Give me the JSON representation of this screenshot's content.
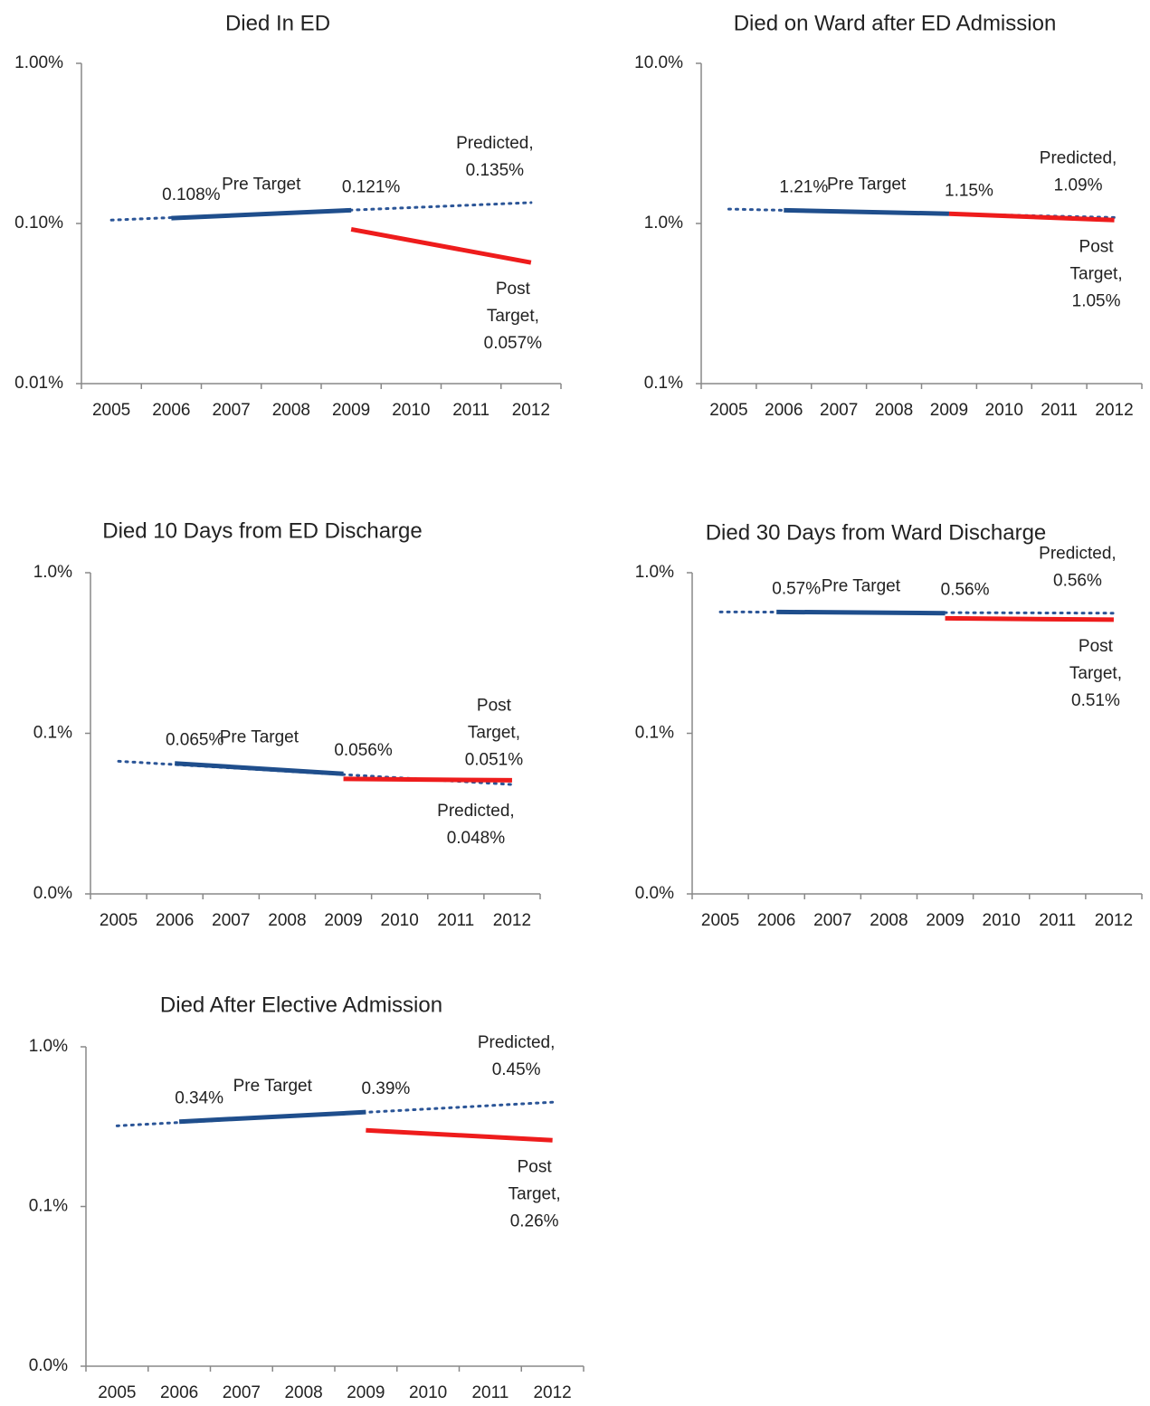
{
  "chart_data": [
    {
      "type": "line",
      "title": "Died In ED",
      "log_scale": true,
      "categories": [
        "2005",
        "2006",
        "2007",
        "2008",
        "2009",
        "2010",
        "2011",
        "2012"
      ],
      "ylim": [
        0.01,
        1
      ],
      "yticks": [
        {
          "value": 1,
          "label": "1.00%"
        },
        {
          "value": 0.1,
          "label": "0.10%"
        },
        {
          "value": 0.01,
          "label": "0.01%"
        }
      ],
      "series": [
        {
          "label": [
            "Predicted,"
          ],
          "color": "#2b5597",
          "style": "dotted",
          "x": [
            "2005",
            "2012"
          ],
          "values": [
            0.105,
            0.135
          ],
          "value_labels": [
            null,
            "0.135%"
          ]
        },
        {
          "name": "Pre Target",
          "color": "#1f4e8c",
          "style": "solid",
          "x": [
            "2006",
            "2009"
          ],
          "values": [
            0.108,
            0.121
          ],
          "value_labels": [
            "0.108%",
            "0.121%"
          ]
        },
        {
          "label": [
            "Post",
            "Target,"
          ],
          "color": "#ee1c1c",
          "style": "solid",
          "x": [
            "2009",
            "2012"
          ],
          "values": [
            0.092,
            0.057
          ],
          "value_labels": [
            null,
            "0.057%"
          ]
        }
      ]
    },
    {
      "type": "line",
      "title": "Died on Ward after ED Admission",
      "log_scale": true,
      "categories": [
        "2005",
        "2006",
        "2007",
        "2008",
        "2009",
        "2010",
        "2011",
        "2012"
      ],
      "ylim": [
        0.1,
        10
      ],
      "yticks": [
        {
          "value": 10,
          "label": "10.0%"
        },
        {
          "value": 1,
          "label": "1.0%"
        },
        {
          "value": 0.1,
          "label": "0.1%"
        }
      ],
      "series": [
        {
          "label": [
            "Predicted,"
          ],
          "color": "#2b5597",
          "style": "dotted",
          "x": [
            "2005",
            "2012"
          ],
          "values": [
            1.23,
            1.09
          ],
          "value_labels": [
            null,
            "1.09%"
          ]
        },
        {
          "name": "Pre Target",
          "color": "#1f4e8c",
          "style": "solid",
          "x": [
            "2006",
            "2009"
          ],
          "values": [
            1.21,
            1.15
          ],
          "value_labels": [
            "1.21%",
            "1.15%"
          ]
        },
        {
          "label": [
            "Post",
            "Target,"
          ],
          "color": "#ee1c1c",
          "style": "solid",
          "x": [
            "2009",
            "2012"
          ],
          "values": [
            1.15,
            1.05
          ],
          "value_labels": [
            null,
            "1.05%"
          ]
        }
      ]
    },
    {
      "type": "line",
      "title": "Died 10 Days from ED Discharge",
      "log_scale": true,
      "categories": [
        "2005",
        "2006",
        "2007",
        "2008",
        "2009",
        "2010",
        "2011",
        "2012"
      ],
      "ylim": [
        0.01,
        1
      ],
      "yticks": [
        {
          "value": 1,
          "label": "1.0%"
        },
        {
          "value": 0.1,
          "label": "0.1%"
        },
        {
          "value": 0.01,
          "label": "0.0%"
        }
      ],
      "series": [
        {
          "label": [
            "Predicted,"
          ],
          "color": "#2b5597",
          "style": "dotted",
          "x": [
            "2005",
            "2012"
          ],
          "values": [
            0.067,
            0.048
          ],
          "value_labels": [
            null,
            "0.048%"
          ]
        },
        {
          "name": "Pre Target",
          "color": "#1f4e8c",
          "style": "solid",
          "x": [
            "2006",
            "2009"
          ],
          "values": [
            0.065,
            0.056
          ],
          "value_labels": [
            "0.065%",
            "0.056%"
          ]
        },
        {
          "label": [
            "Post",
            "Target,"
          ],
          "color": "#ee1c1c",
          "style": "solid",
          "x": [
            "2009",
            "2012"
          ],
          "values": [
            0.052,
            0.051
          ],
          "value_labels": [
            null,
            "0.051%"
          ]
        }
      ]
    },
    {
      "type": "line",
      "title": "Died 30 Days from Ward Discharge",
      "log_scale": true,
      "categories": [
        "2005",
        "2006",
        "2007",
        "2008",
        "2009",
        "2010",
        "2011",
        "2012"
      ],
      "ylim": [
        0.01,
        1
      ],
      "yticks": [
        {
          "value": 1,
          "label": "1.0%"
        },
        {
          "value": 0.1,
          "label": "0.1%"
        },
        {
          "value": 0.01,
          "label": "0.0%"
        }
      ],
      "series": [
        {
          "label": [
            "Predicted,"
          ],
          "color": "#2b5597",
          "style": "dotted",
          "x": [
            "2005",
            "2012"
          ],
          "values": [
            0.57,
            0.56
          ],
          "value_labels": [
            null,
            "0.56%"
          ]
        },
        {
          "name": "Pre Target",
          "color": "#1f4e8c",
          "style": "solid",
          "x": [
            "2006",
            "2009"
          ],
          "values": [
            0.57,
            0.56
          ],
          "value_labels": [
            "0.57%",
            "0.56%"
          ]
        },
        {
          "label": [
            "Post",
            "Target,"
          ],
          "color": "#ee1c1c",
          "style": "solid",
          "x": [
            "2009",
            "2012"
          ],
          "values": [
            0.52,
            0.51
          ],
          "value_labels": [
            null,
            "0.51%"
          ]
        }
      ]
    },
    {
      "type": "line",
      "title": "Died After Elective Admission",
      "log_scale": true,
      "categories": [
        "2005",
        "2006",
        "2007",
        "2008",
        "2009",
        "2010",
        "2011",
        "2012"
      ],
      "ylim": [
        0.01,
        1
      ],
      "yticks": [
        {
          "value": 1,
          "label": "1.0%"
        },
        {
          "value": 0.1,
          "label": "0.1%"
        },
        {
          "value": 0.01,
          "label": "0.0%"
        }
      ],
      "series": [
        {
          "label": [
            "Predicted,"
          ],
          "color": "#2b5597",
          "style": "dotted",
          "x": [
            "2005",
            "2012"
          ],
          "values": [
            0.32,
            0.45
          ],
          "value_labels": [
            null,
            "0.45%"
          ]
        },
        {
          "name": "Pre Target",
          "color": "#1f4e8c",
          "style": "solid",
          "x": [
            "2006",
            "2009"
          ],
          "values": [
            0.34,
            0.39
          ],
          "value_labels": [
            "0.34%",
            "0.39%"
          ]
        },
        {
          "label": [
            "Post",
            "Target,"
          ],
          "color": "#ee1c1c",
          "style": "solid",
          "x": [
            "2009",
            "2012"
          ],
          "values": [
            0.3,
            0.26
          ],
          "value_labels": [
            null,
            "0.26%"
          ]
        }
      ]
    }
  ]
}
